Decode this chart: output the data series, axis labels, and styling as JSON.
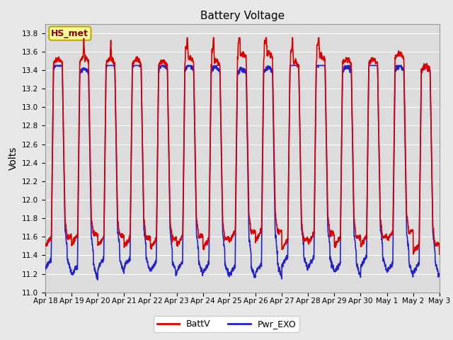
{
  "title": "Battery Voltage",
  "ylabel": "Volts",
  "ylim": [
    11.0,
    13.9
  ],
  "yticks": [
    11.0,
    11.2,
    11.4,
    11.6,
    11.8,
    12.0,
    12.2,
    12.4,
    12.6,
    12.8,
    13.0,
    13.2,
    13.4,
    13.6,
    13.8
  ],
  "x_labels": [
    "Apr 18",
    "Apr 19",
    "Apr 20",
    "Apr 21",
    "Apr 22",
    "Apr 23",
    "Apr 24",
    "Apr 25",
    "Apr 26",
    "Apr 27",
    "Apr 28",
    "Apr 29",
    "Apr 30",
    "May 1",
    "May 2",
    "May 3"
  ],
  "batt_color": "#dd0000",
  "exo_color": "#2222cc",
  "line_width": 1.2,
  "background_color": "#e8e8e8",
  "plot_bg_color": "#dcdcdc",
  "annotation_text": "HS_met",
  "annotation_bg": "#ffff99",
  "annotation_border": "#bbaa00",
  "legend_batt": "BattV",
  "legend_exo": "Pwr_EXO",
  "title_fontsize": 11,
  "axis_label_fontsize": 10
}
